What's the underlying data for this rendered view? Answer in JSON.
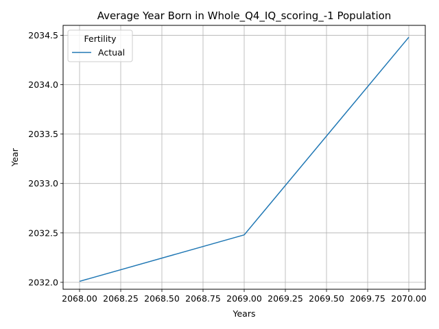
{
  "chart_data": {
    "type": "line",
    "title": "Average Year Born in Whole_Q4_IQ_scoring_-1 Population",
    "xlabel": "Years",
    "ylabel": "Year",
    "xlim": [
      1967.9,
      2070.1
    ],
    "ylim": [
      2031.93,
      2034.6
    ],
    "xticks": [
      2068.0,
      2068.25,
      2068.5,
      2068.75,
      2069.0,
      2069.25,
      2069.5,
      2069.75,
      2070.0
    ],
    "xtick_labels": [
      "2068.00",
      "2068.25",
      "2068.50",
      "2068.75",
      "2069.00",
      "2069.25",
      "2069.50",
      "2069.75",
      "2070.00"
    ],
    "yticks": [
      2032.0,
      2032.5,
      2033.0,
      2033.5,
      2034.0,
      2034.5
    ],
    "ytick_labels": [
      "2032.0",
      "2032.5",
      "2033.0",
      "2033.5",
      "2034.0",
      "2034.5"
    ],
    "grid": true,
    "legend": {
      "title": "Fertility",
      "placement": "top-left"
    },
    "series": [
      {
        "name": "Actual",
        "color": "#1f77b4",
        "x": [
          2068.0,
          2069.0,
          2070.0
        ],
        "y": [
          2032.01,
          2032.48,
          2034.48
        ]
      }
    ]
  }
}
